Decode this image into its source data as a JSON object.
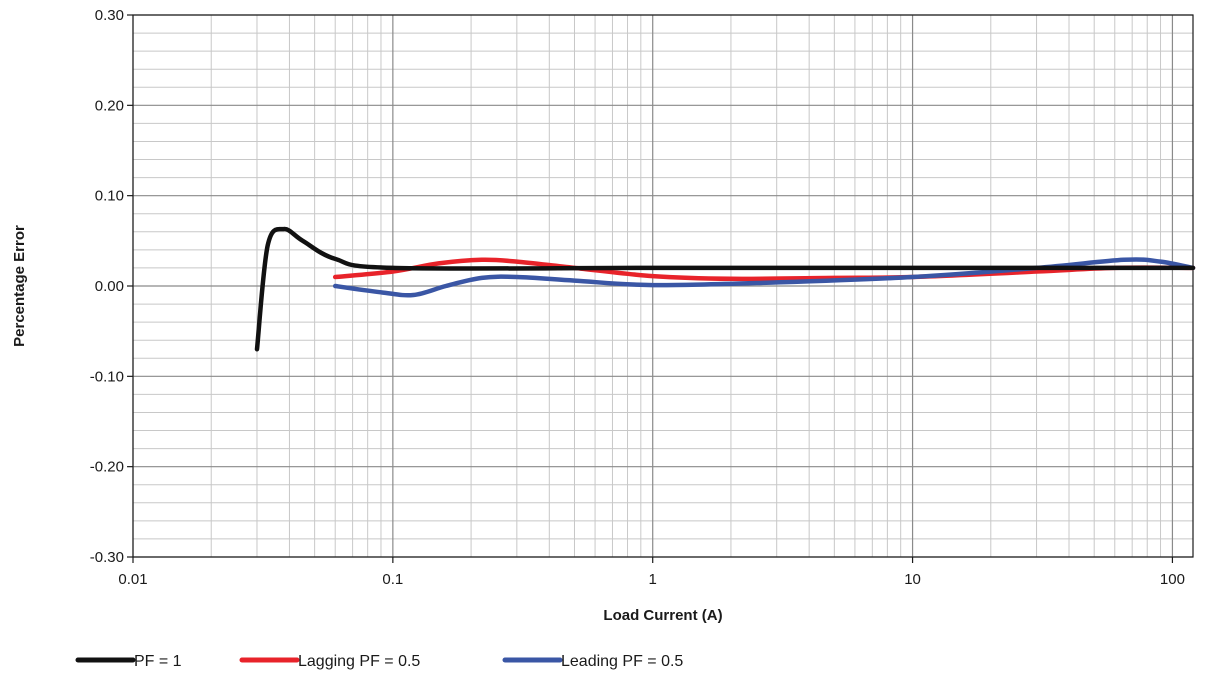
{
  "chart_data": {
    "type": "line",
    "title": "",
    "xlabel": "Load Current (A)",
    "ylabel": "Percentage Error",
    "x_scale": "log",
    "xlim": [
      0.01,
      120
    ],
    "ylim": [
      -0.3,
      0.3
    ],
    "grid": true,
    "legend_position": "bottom",
    "x_ticks": [
      {
        "value": 0.01,
        "label": "0.01"
      },
      {
        "value": 0.1,
        "label": "0.1"
      },
      {
        "value": 1,
        "label": "1"
      },
      {
        "value": 10,
        "label": "10"
      },
      {
        "value": 100,
        "label": "100"
      }
    ],
    "y_ticks": [
      {
        "value": 0.3,
        "label": "0.30"
      },
      {
        "value": 0.2,
        "label": "0.20"
      },
      {
        "value": 0.1,
        "label": "0.10"
      },
      {
        "value": 0.0,
        "label": "0.00"
      },
      {
        "value": -0.1,
        "label": "-0.10"
      },
      {
        "value": -0.2,
        "label": "-0.20"
      },
      {
        "value": -0.3,
        "label": "-0.30"
      }
    ],
    "series": [
      {
        "name": "PF = 1",
        "color": "#111111",
        "points": [
          [
            0.03,
            -0.07
          ],
          [
            0.033,
            0.045
          ],
          [
            0.038,
            0.063
          ],
          [
            0.045,
            0.05
          ],
          [
            0.06,
            0.03
          ],
          [
            0.1,
            0.02
          ],
          [
            1,
            0.02
          ],
          [
            10,
            0.02
          ],
          [
            30,
            0.02
          ],
          [
            60,
            0.02
          ],
          [
            120,
            0.02
          ]
        ]
      },
      {
        "name": "Lagging PF = 0.5",
        "color": "#e8232a",
        "points": [
          [
            0.06,
            0.01
          ],
          [
            0.1,
            0.016
          ],
          [
            0.15,
            0.025
          ],
          [
            0.22,
            0.029
          ],
          [
            0.3,
            0.027
          ],
          [
            0.5,
            0.02
          ],
          [
            1,
            0.011
          ],
          [
            2,
            0.008
          ],
          [
            5,
            0.009
          ],
          [
            10,
            0.01
          ],
          [
            30,
            0.016
          ],
          [
            60,
            0.02
          ],
          [
            120,
            0.02
          ]
        ]
      },
      {
        "name": "Leading PF = 0.5",
        "color": "#3a56a5",
        "points": [
          [
            0.06,
            0.0
          ],
          [
            0.09,
            -0.007
          ],
          [
            0.12,
            -0.01
          ],
          [
            0.16,
            0.0
          ],
          [
            0.22,
            0.009
          ],
          [
            0.3,
            0.01
          ],
          [
            0.5,
            0.006
          ],
          [
            1,
            0.001
          ],
          [
            3,
            0.004
          ],
          [
            10,
            0.01
          ],
          [
            30,
            0.02
          ],
          [
            65,
            0.029
          ],
          [
            90,
            0.027
          ],
          [
            120,
            0.02
          ]
        ]
      }
    ]
  }
}
